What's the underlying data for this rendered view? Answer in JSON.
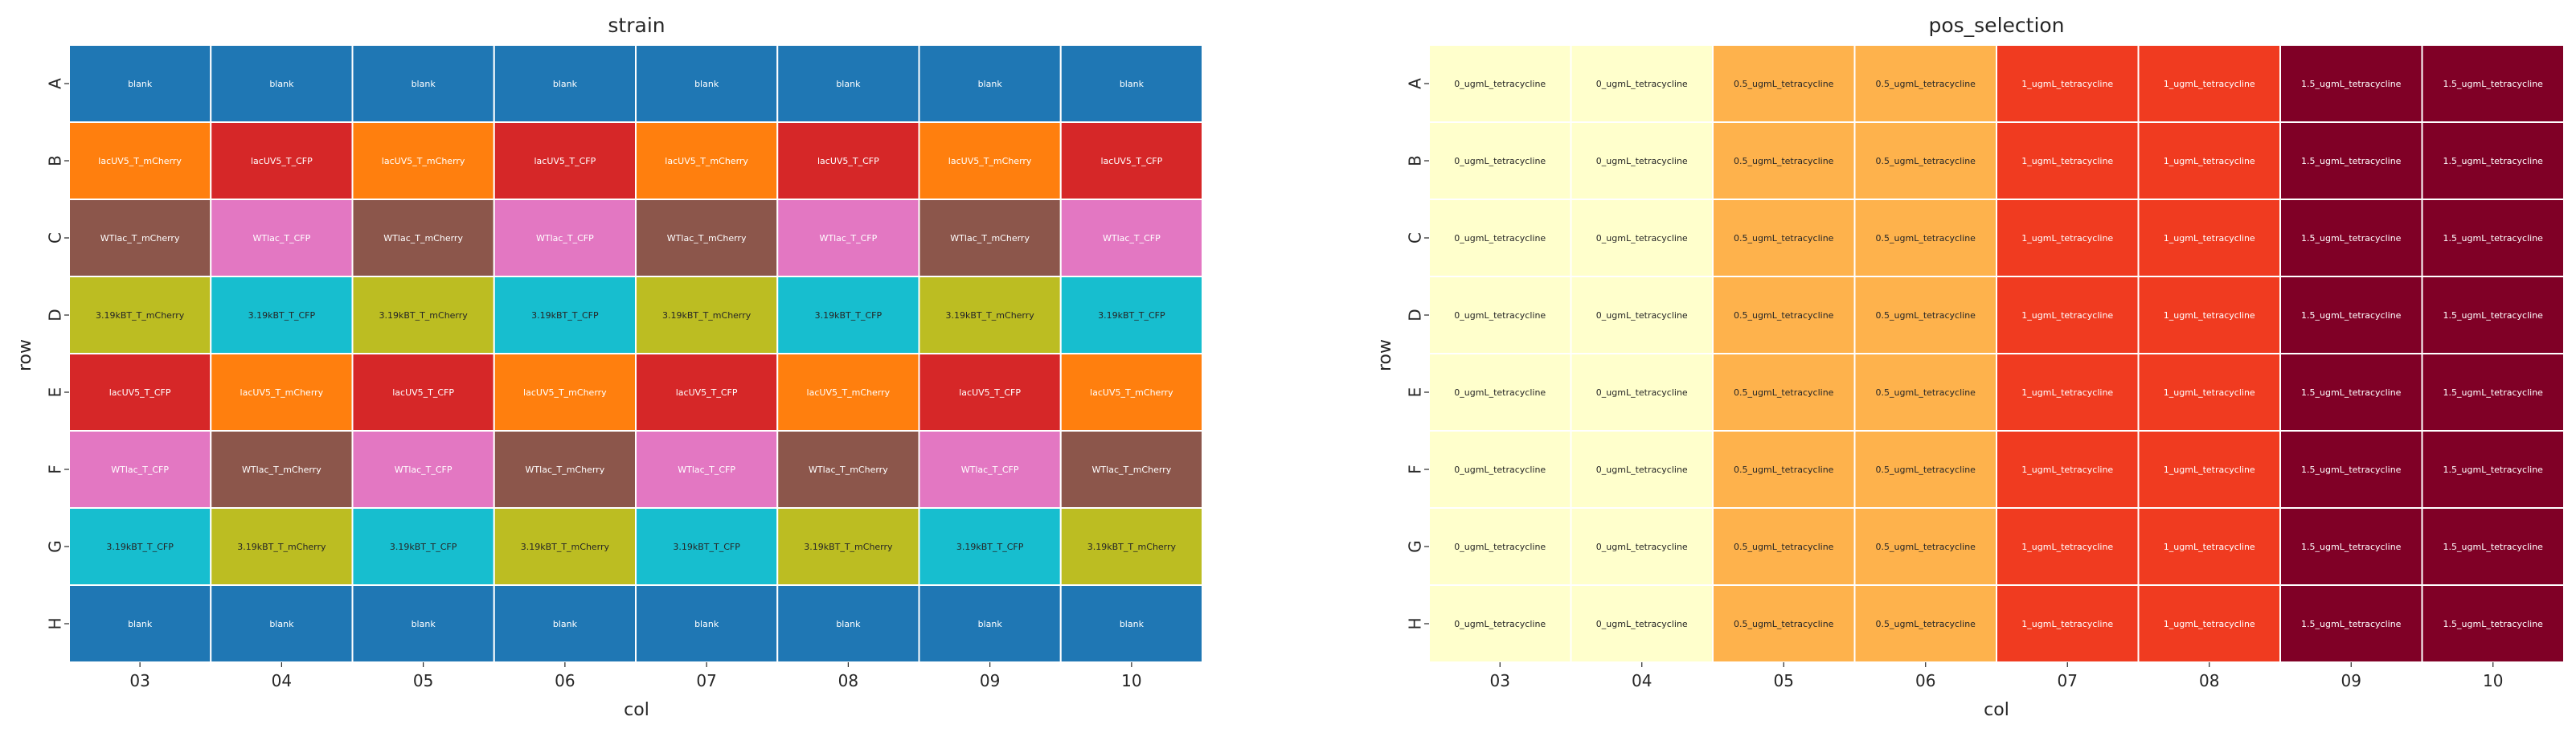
{
  "chart_data": [
    {
      "type": "heatmap",
      "title": "strain",
      "xlabel": "col",
      "ylabel": "row",
      "columns": [
        "03",
        "04",
        "05",
        "06",
        "07",
        "08",
        "09",
        "10"
      ],
      "rows": [
        "A",
        "B",
        "C",
        "D",
        "E",
        "F",
        "G",
        "H"
      ],
      "values": [
        [
          "blank",
          "blank",
          "blank",
          "blank",
          "blank",
          "blank",
          "blank",
          "blank"
        ],
        [
          "lacUV5_T_mCherry",
          "lacUV5_T_CFP",
          "lacUV5_T_mCherry",
          "lacUV5_T_CFP",
          "lacUV5_T_mCherry",
          "lacUV5_T_CFP",
          "lacUV5_T_mCherry",
          "lacUV5_T_CFP"
        ],
        [
          "WTlac_T_mCherry",
          "WTlac_T_CFP",
          "WTlac_T_mCherry",
          "WTlac_T_CFP",
          "WTlac_T_mCherry",
          "WTlac_T_CFP",
          "WTlac_T_mCherry",
          "WTlac_T_CFP"
        ],
        [
          "3.19kBT_T_mCherry",
          "3.19kBT_T_CFP",
          "3.19kBT_T_mCherry",
          "3.19kBT_T_CFP",
          "3.19kBT_T_mCherry",
          "3.19kBT_T_CFP",
          "3.19kBT_T_mCherry",
          "3.19kBT_T_CFP"
        ],
        [
          "lacUV5_T_CFP",
          "lacUV5_T_mCherry",
          "lacUV5_T_CFP",
          "lacUV5_T_mCherry",
          "lacUV5_T_CFP",
          "lacUV5_T_mCherry",
          "lacUV5_T_CFP",
          "lacUV5_T_mCherry"
        ],
        [
          "WTlac_T_CFP",
          "WTlac_T_mCherry",
          "WTlac_T_CFP",
          "WTlac_T_mCherry",
          "WTlac_T_CFP",
          "WTlac_T_mCherry",
          "WTlac_T_CFP",
          "WTlac_T_mCherry"
        ],
        [
          "3.19kBT_T_CFP",
          "3.19kBT_T_mCherry",
          "3.19kBT_T_CFP",
          "3.19kBT_T_mCherry",
          "3.19kBT_T_CFP",
          "3.19kBT_T_mCherry",
          "3.19kBT_T_CFP",
          "3.19kBT_T_mCherry"
        ],
        [
          "blank",
          "blank",
          "blank",
          "blank",
          "blank",
          "blank",
          "blank",
          "blank"
        ]
      ],
      "colors": {
        "blank": "#1f77b4",
        "lacUV5_T_mCherry": "#ff7f0e",
        "lacUV5_T_CFP": "#d62728",
        "WTlac_T_mCherry": "#8c564b",
        "WTlac_T_CFP": "#e377c2",
        "3.19kBT_T_mCherry": "#bcbd22",
        "3.19kBT_T_CFP": "#17becf"
      },
      "text_colors": {
        "3.19kBT_T_mCherry": "#262626",
        "3.19kBT_T_CFP": "#262626"
      },
      "default_text_color": "#ffffff",
      "grid_color": "#ffffff"
    },
    {
      "type": "heatmap",
      "title": "pos_selection",
      "xlabel": "col",
      "ylabel": "row",
      "columns": [
        "03",
        "04",
        "05",
        "06",
        "07",
        "08",
        "09",
        "10"
      ],
      "rows": [
        "A",
        "B",
        "C",
        "D",
        "E",
        "F",
        "G",
        "H"
      ],
      "values": [
        [
          "0_ugmL_tetracycline",
          "0_ugmL_tetracycline",
          "0.5_ugmL_tetracycline",
          "0.5_ugmL_tetracycline",
          "1_ugmL_tetracycline",
          "1_ugmL_tetracycline",
          "1.5_ugmL_tetracycline",
          "1.5_ugmL_tetracycline"
        ],
        [
          "0_ugmL_tetracycline",
          "0_ugmL_tetracycline",
          "0.5_ugmL_tetracycline",
          "0.5_ugmL_tetracycline",
          "1_ugmL_tetracycline",
          "1_ugmL_tetracycline",
          "1.5_ugmL_tetracycline",
          "1.5_ugmL_tetracycline"
        ],
        [
          "0_ugmL_tetracycline",
          "0_ugmL_tetracycline",
          "0.5_ugmL_tetracycline",
          "0.5_ugmL_tetracycline",
          "1_ugmL_tetracycline",
          "1_ugmL_tetracycline",
          "1.5_ugmL_tetracycline",
          "1.5_ugmL_tetracycline"
        ],
        [
          "0_ugmL_tetracycline",
          "0_ugmL_tetracycline",
          "0.5_ugmL_tetracycline",
          "0.5_ugmL_tetracycline",
          "1_ugmL_tetracycline",
          "1_ugmL_tetracycline",
          "1.5_ugmL_tetracycline",
          "1.5_ugmL_tetracycline"
        ],
        [
          "0_ugmL_tetracycline",
          "0_ugmL_tetracycline",
          "0.5_ugmL_tetracycline",
          "0.5_ugmL_tetracycline",
          "1_ugmL_tetracycline",
          "1_ugmL_tetracycline",
          "1.5_ugmL_tetracycline",
          "1.5_ugmL_tetracycline"
        ],
        [
          "0_ugmL_tetracycline",
          "0_ugmL_tetracycline",
          "0.5_ugmL_tetracycline",
          "0.5_ugmL_tetracycline",
          "1_ugmL_tetracycline",
          "1_ugmL_tetracycline",
          "1.5_ugmL_tetracycline",
          "1.5_ugmL_tetracycline"
        ],
        [
          "0_ugmL_tetracycline",
          "0_ugmL_tetracycline",
          "0.5_ugmL_tetracycline",
          "0.5_ugmL_tetracycline",
          "1_ugmL_tetracycline",
          "1_ugmL_tetracycline",
          "1.5_ugmL_tetracycline",
          "1.5_ugmL_tetracycline"
        ],
        [
          "0_ugmL_tetracycline",
          "0_ugmL_tetracycline",
          "0.5_ugmL_tetracycline",
          "0.5_ugmL_tetracycline",
          "1_ugmL_tetracycline",
          "1_ugmL_tetracycline",
          "1.5_ugmL_tetracycline",
          "1.5_ugmL_tetracycline"
        ]
      ],
      "colors": {
        "0_ugmL_tetracycline": "#ffffcc",
        "0.5_ugmL_tetracycline": "#feb24c",
        "1_ugmL_tetracycline": "#f03b20",
        "1.5_ugmL_tetracycline": "#800026"
      },
      "text_colors": {
        "0_ugmL_tetracycline": "#262626",
        "0.5_ugmL_tetracycline": "#262626"
      },
      "default_text_color": "#ffffff",
      "grid_color": "#ffffff"
    }
  ]
}
